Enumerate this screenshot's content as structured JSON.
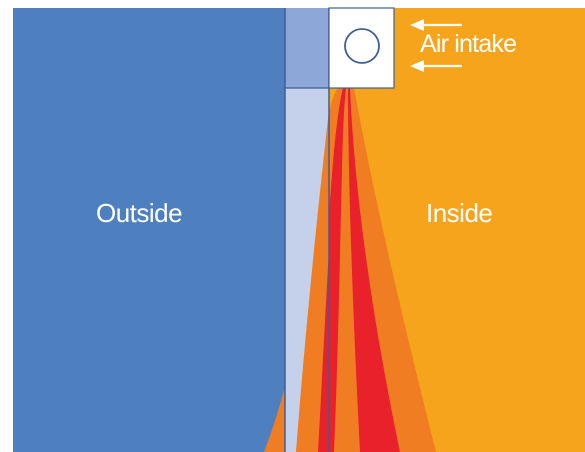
{
  "labels": {
    "outside": "Outside",
    "inside": "Inside",
    "air_intake": "Air intake"
  },
  "colors": {
    "outside": "#4e80c0",
    "inside": "#f6a41c",
    "cavity": "#c5d0ea",
    "frame_top": "#8ea7d9",
    "heat_orange": "#f07d22",
    "heat_red": "#e8212b",
    "outline": "#3e5f93",
    "arrow": "#ffffff"
  },
  "icons": {
    "intake": "circle-intake-icon",
    "arrows": "left-arrow-icon"
  }
}
